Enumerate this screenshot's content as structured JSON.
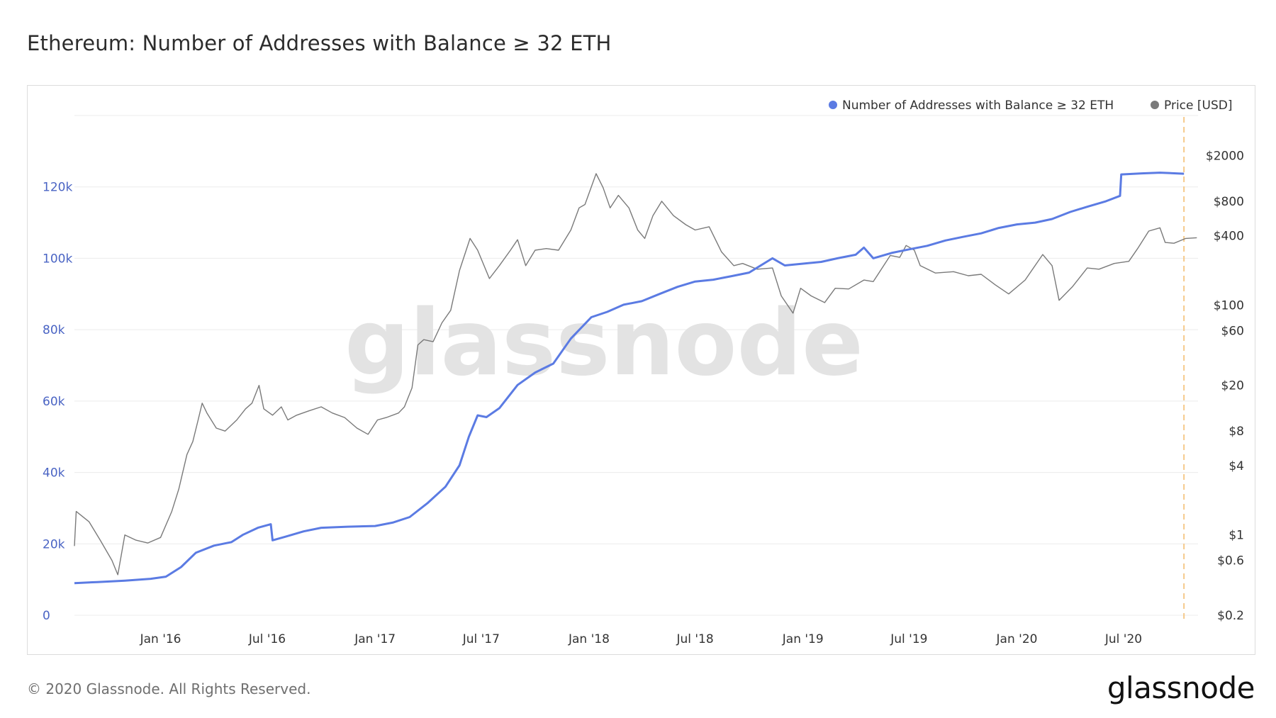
{
  "title": "Ethereum: Number of Addresses with Balance ≥ 32 ETH",
  "footer": {
    "copyright": "© 2020 Glassnode. All Rights Reserved.",
    "logo": "glassnode"
  },
  "watermark": "glassnode",
  "colors": {
    "addresses": "#5b7be3",
    "price": "#7a7a7a",
    "left_axis_text": "#4a64c4",
    "right_axis_text": "#333333",
    "grid": "#ececec",
    "marker": "#f5c98a"
  },
  "chart_data": {
    "type": "line",
    "x_ticks": [
      "Jan '16",
      "Jul '16",
      "Jan '17",
      "Jul '17",
      "Jan '18",
      "Jul '18",
      "Jan '19",
      "Jul '19",
      "Jan '20",
      "Jul '20"
    ],
    "x_tick_dates": [
      "2016-01-01",
      "2016-07-01",
      "2017-01-01",
      "2017-07-01",
      "2018-01-01",
      "2018-07-01",
      "2019-01-01",
      "2019-07-01",
      "2020-01-01",
      "2020-07-01"
    ],
    "xlim": [
      "2015-08-07",
      "2020-11-05"
    ],
    "current_date_marker": "2020-10-12",
    "y_left": {
      "ticks": [
        "0",
        "20k",
        "40k",
        "60k",
        "80k",
        "100k",
        "120k"
      ],
      "tick_values": [
        0,
        20000,
        40000,
        60000,
        80000,
        100000,
        120000
      ],
      "ylim": [
        0,
        140000
      ]
    },
    "y_right": {
      "scale": "log",
      "ticks": [
        "$0.2",
        "$0.6",
        "$1",
        "$4",
        "$8",
        "$20",
        "$60",
        "$100",
        "$400",
        "$800",
        "$2000"
      ],
      "tick_values": [
        0.2,
        0.6,
        1,
        4,
        8,
        20,
        60,
        100,
        400,
        800,
        2000
      ],
      "ylim": [
        0.2,
        3500
      ]
    },
    "legend_position": "top-right",
    "series": [
      {
        "name": "Number of Addresses with Balance ≥ 32 ETH",
        "axis": "left",
        "points": [
          [
            "2015-08-07",
            9000
          ],
          [
            "2015-09-15",
            9300
          ],
          [
            "2015-11-01",
            9700
          ],
          [
            "2015-12-15",
            10200
          ],
          [
            "2016-01-10",
            10800
          ],
          [
            "2016-02-05",
            13500
          ],
          [
            "2016-03-01",
            17500
          ],
          [
            "2016-04-01",
            19500
          ],
          [
            "2016-05-01",
            20500
          ],
          [
            "2016-05-20",
            22500
          ],
          [
            "2016-06-15",
            24500
          ],
          [
            "2016-07-07",
            25500
          ],
          [
            "2016-07-10",
            21000
          ],
          [
            "2016-08-01",
            22000
          ],
          [
            "2016-09-01",
            23500
          ],
          [
            "2016-10-01",
            24500
          ],
          [
            "2016-11-15",
            24800
          ],
          [
            "2017-01-01",
            25000
          ],
          [
            "2017-02-01",
            26000
          ],
          [
            "2017-03-01",
            27500
          ],
          [
            "2017-04-01",
            31500
          ],
          [
            "2017-05-01",
            36000
          ],
          [
            "2017-05-25",
            42000
          ],
          [
            "2017-06-10",
            50000
          ],
          [
            "2017-06-25",
            56000
          ],
          [
            "2017-07-10",
            55500
          ],
          [
            "2017-08-01",
            58000
          ],
          [
            "2017-09-01",
            64500
          ],
          [
            "2017-10-01",
            68000
          ],
          [
            "2017-11-01",
            70500
          ],
          [
            "2017-12-01",
            77500
          ],
          [
            "2018-01-05",
            83500
          ],
          [
            "2018-02-01",
            85000
          ],
          [
            "2018-03-01",
            87000
          ],
          [
            "2018-04-01",
            88000
          ],
          [
            "2018-05-01",
            90000
          ],
          [
            "2018-06-01",
            92000
          ],
          [
            "2018-07-01",
            93500
          ],
          [
            "2018-08-01",
            94000
          ],
          [
            "2018-09-01",
            95000
          ],
          [
            "2018-10-01",
            96000
          ],
          [
            "2018-11-10",
            100000
          ],
          [
            "2018-12-01",
            98000
          ],
          [
            "2019-01-01",
            98500
          ],
          [
            "2019-02-01",
            99000
          ],
          [
            "2019-03-01",
            100000
          ],
          [
            "2019-04-01",
            101000
          ],
          [
            "2019-04-15",
            103000
          ],
          [
            "2019-05-01",
            100000
          ],
          [
            "2019-06-01",
            101500
          ],
          [
            "2019-07-01",
            102500
          ],
          [
            "2019-08-01",
            103500
          ],
          [
            "2019-09-01",
            105000
          ],
          [
            "2019-10-01",
            106000
          ],
          [
            "2019-11-01",
            107000
          ],
          [
            "2019-12-01",
            108500
          ],
          [
            "2020-01-01",
            109500
          ],
          [
            "2020-02-01",
            110000
          ],
          [
            "2020-03-01",
            111000
          ],
          [
            "2020-04-01",
            113000
          ],
          [
            "2020-05-01",
            114500
          ],
          [
            "2020-06-01",
            116000
          ],
          [
            "2020-06-25",
            117500
          ],
          [
            "2020-06-27",
            123500
          ],
          [
            "2020-08-01",
            123800
          ],
          [
            "2020-09-01",
            124000
          ],
          [
            "2020-10-12",
            123700
          ]
        ]
      },
      {
        "name": "Price [USD]",
        "axis": "right",
        "points": [
          [
            "2015-08-07",
            0.8
          ],
          [
            "2015-08-10",
            1.6
          ],
          [
            "2015-09-01",
            1.3
          ],
          [
            "2015-09-20",
            0.9
          ],
          [
            "2015-10-10",
            0.6
          ],
          [
            "2015-10-20",
            0.45
          ],
          [
            "2015-11-01",
            1.0
          ],
          [
            "2015-11-20",
            0.9
          ],
          [
            "2015-12-10",
            0.85
          ],
          [
            "2016-01-01",
            0.95
          ],
          [
            "2016-01-20",
            1.6
          ],
          [
            "2016-02-01",
            2.5
          ],
          [
            "2016-02-15",
            5.0
          ],
          [
            "2016-02-25",
            6.5
          ],
          [
            "2016-03-05",
            10.0
          ],
          [
            "2016-03-12",
            14.0
          ],
          [
            "2016-03-20",
            11.5
          ],
          [
            "2016-04-05",
            8.5
          ],
          [
            "2016-04-20",
            8.0
          ],
          [
            "2016-05-10",
            10.0
          ],
          [
            "2016-05-25",
            12.5
          ],
          [
            "2016-06-05",
            14.0
          ],
          [
            "2016-06-17",
            20.0
          ],
          [
            "2016-06-25",
            12.5
          ],
          [
            "2016-07-10",
            11.0
          ],
          [
            "2016-07-25",
            13.0
          ],
          [
            "2016-08-05",
            10.0
          ],
          [
            "2016-08-20",
            11.0
          ],
          [
            "2016-09-10",
            12.0
          ],
          [
            "2016-10-01",
            13.0
          ],
          [
            "2016-10-20",
            11.5
          ],
          [
            "2016-11-10",
            10.5
          ],
          [
            "2016-12-01",
            8.5
          ],
          [
            "2016-12-20",
            7.5
          ],
          [
            "2017-01-05",
            10.0
          ],
          [
            "2017-01-20",
            10.5
          ],
          [
            "2017-02-10",
            11.5
          ],
          [
            "2017-02-20",
            13.0
          ],
          [
            "2017-03-05",
            19.0
          ],
          [
            "2017-03-15",
            45.0
          ],
          [
            "2017-03-25",
            50.0
          ],
          [
            "2017-04-10",
            48.0
          ],
          [
            "2017-04-25",
            70.0
          ],
          [
            "2017-05-10",
            90.0
          ],
          [
            "2017-05-25",
            200.0
          ],
          [
            "2017-06-12",
            380.0
          ],
          [
            "2017-06-25",
            300.0
          ],
          [
            "2017-07-15",
            170.0
          ],
          [
            "2017-08-01",
            220.0
          ],
          [
            "2017-08-20",
            300.0
          ],
          [
            "2017-09-01",
            370.0
          ],
          [
            "2017-09-15",
            220.0
          ],
          [
            "2017-10-01",
            300.0
          ],
          [
            "2017-10-20",
            310.0
          ],
          [
            "2017-11-10",
            300.0
          ],
          [
            "2017-12-01",
            450.0
          ],
          [
            "2017-12-15",
            700.0
          ],
          [
            "2017-12-25",
            750.0
          ],
          [
            "2018-01-13",
            1390.0
          ],
          [
            "2018-01-25",
            1050.0
          ],
          [
            "2018-02-06",
            700.0
          ],
          [
            "2018-02-20",
            900.0
          ],
          [
            "2018-03-10",
            700.0
          ],
          [
            "2018-03-25",
            450.0
          ],
          [
            "2018-04-06",
            380.0
          ],
          [
            "2018-04-20",
            600.0
          ],
          [
            "2018-05-05",
            800.0
          ],
          [
            "2018-05-25",
            600.0
          ],
          [
            "2018-06-15",
            500.0
          ],
          [
            "2018-07-01",
            450.0
          ],
          [
            "2018-07-25",
            480.0
          ],
          [
            "2018-08-15",
            290.0
          ],
          [
            "2018-09-05",
            220.0
          ],
          [
            "2018-09-20",
            230.0
          ],
          [
            "2018-10-15",
            205.0
          ],
          [
            "2018-11-10",
            210.0
          ],
          [
            "2018-11-25",
            120.0
          ],
          [
            "2018-12-15",
            85.0
          ],
          [
            "2018-12-28",
            140.0
          ],
          [
            "2019-01-15",
            120.0
          ],
          [
            "2019-02-07",
            105.0
          ],
          [
            "2019-02-25",
            140.0
          ],
          [
            "2019-03-20",
            138.0
          ],
          [
            "2019-04-15",
            165.0
          ],
          [
            "2019-05-01",
            160.0
          ],
          [
            "2019-05-30",
            270.0
          ],
          [
            "2019-06-15",
            260.0
          ],
          [
            "2019-06-26",
            330.0
          ],
          [
            "2019-07-10",
            300.0
          ],
          [
            "2019-07-20",
            220.0
          ],
          [
            "2019-08-15",
            190.0
          ],
          [
            "2019-09-15",
            195.0
          ],
          [
            "2019-10-10",
            180.0
          ],
          [
            "2019-11-01",
            185.0
          ],
          [
            "2019-11-25",
            150.0
          ],
          [
            "2019-12-18",
            125.0
          ],
          [
            "2020-01-15",
            165.0
          ],
          [
            "2020-02-14",
            275.0
          ],
          [
            "2020-03-01",
            220.0
          ],
          [
            "2020-03-13",
            110.0
          ],
          [
            "2020-04-05",
            145.0
          ],
          [
            "2020-04-30",
            210.0
          ],
          [
            "2020-05-20",
            205.0
          ],
          [
            "2020-06-15",
            230.0
          ],
          [
            "2020-07-10",
            240.0
          ],
          [
            "2020-07-25",
            310.0
          ],
          [
            "2020-08-13",
            440.0
          ],
          [
            "2020-09-01",
            470.0
          ],
          [
            "2020-09-10",
            350.0
          ],
          [
            "2020-09-25",
            345.0
          ],
          [
            "2020-10-15",
            380.0
          ],
          [
            "2020-11-03",
            385.0
          ]
        ]
      }
    ]
  }
}
